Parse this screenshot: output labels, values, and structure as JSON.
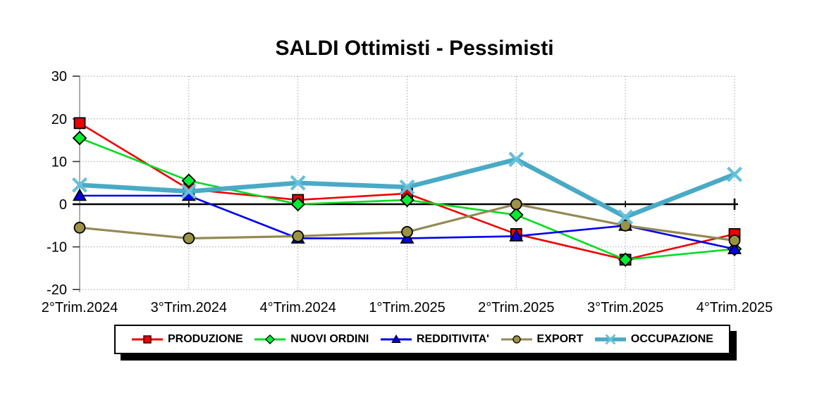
{
  "chart_data": {
    "type": "line",
    "title": "SALDI Ottimisti - Pessimisti",
    "categories": [
      "2°Trim.2024",
      "3°Trim.2024",
      "4°Trim.2024",
      "1°Trim.2025",
      "2°Trim.2025",
      "3°Trim.2025",
      "4°Trim.2025"
    ],
    "y_ticks": [
      30,
      20,
      10,
      0,
      -10,
      -20
    ],
    "ylim": [
      -20,
      30
    ],
    "xlabel": "",
    "ylabel": "",
    "grid": {
      "horizontal": "dotted",
      "vertical": "dotted",
      "zero_line": "solid-black"
    },
    "legend_position": "bottom",
    "series": [
      {
        "name": "PRODUZIONE",
        "color": "#ee0000",
        "marker": "square",
        "marker_fill": "#ee0000",
        "line_width": 2.6,
        "values": [
          19,
          3.5,
          1,
          2.5,
          -7,
          -13,
          -7
        ]
      },
      {
        "name": "NUOVI ORDINI",
        "color": "#00dd22",
        "marker": "diamond",
        "marker_fill": "#00ee33",
        "line_width": 2.6,
        "values": [
          15.5,
          5.5,
          0,
          1,
          -2.5,
          -13,
          -10.5
        ]
      },
      {
        "name": "REDDITIVITA'",
        "color": "#0000ee",
        "marker": "triangle",
        "marker_fill": "#0000ee",
        "line_width": 2.6,
        "values": [
          2,
          2,
          -8,
          -8,
          -7.5,
          -5,
          -10.5
        ]
      },
      {
        "name": "EXPORT",
        "color": "#938953",
        "marker": "circle",
        "marker_fill": "#9c9246",
        "line_width": 3.2,
        "values": [
          -5.5,
          -8,
          -7.5,
          -6.5,
          0,
          -5,
          -8.5
        ]
      },
      {
        "name": "OCCUPAZIONE",
        "color": "#49aac6",
        "marker": "x",
        "marker_fill": "#67c0d9",
        "line_width": 6.5,
        "values": [
          4.5,
          3,
          5,
          4,
          10.5,
          -3,
          7
        ]
      }
    ]
  }
}
